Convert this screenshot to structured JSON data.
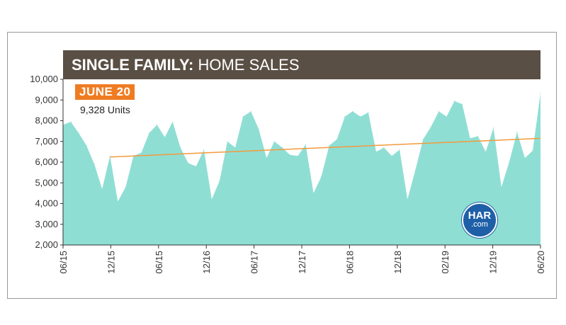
{
  "colors": {
    "area": "#8fded4",
    "trend": "#f39a3c",
    "title_bar": "#5a4f44",
    "badge": "#f07c22",
    "logo": "#1e5fa8"
  },
  "title": {
    "strong": "SINGLE FAMILY:",
    "rest": "HOME SALES"
  },
  "callout": {
    "badge": "JUNE 20",
    "value": "9,328 Units"
  },
  "logo": {
    "line1": "HAR",
    "line2": ".com",
    "icon": "har-logo"
  },
  "chart_data": {
    "type": "area",
    "ylim": [
      2000,
      10000
    ],
    "yticks": [
      2000,
      3000,
      4000,
      5000,
      6000,
      7000,
      8000,
      9000,
      10000
    ],
    "ytick_labels": [
      "2,000",
      "3,000",
      "4,000",
      "5,000",
      "6,000",
      "7,000",
      "8,000",
      "9,000",
      "10,000"
    ],
    "xtick_labels": [
      "06/15",
      "12/15",
      "06/15",
      "12/16",
      "06/17",
      "12/17",
      "06/18",
      "12/18",
      "02/19",
      "12/19",
      "06/20"
    ],
    "series": [
      {
        "values": [
          7800,
          7950,
          7400,
          6800,
          5900,
          4700,
          6300,
          4100,
          4800,
          6300,
          6450,
          7400,
          7800,
          7200,
          7950,
          6700,
          5950,
          5800,
          6600,
          4200,
          5100,
          7000,
          6700,
          8200,
          8450,
          7600,
          6200,
          7000,
          6700,
          6350,
          6300,
          6850,
          4500,
          5300,
          6800,
          7100,
          8200,
          8450,
          8200,
          8400,
          6500,
          6700,
          6300,
          6600,
          4200,
          5600,
          7100,
          7700,
          8450,
          8200,
          8950,
          8800,
          7150,
          7250,
          6500,
          7650,
          4800,
          6000,
          7450,
          6200,
          6550,
          9328
        ]
      }
    ],
    "trend": {
      "start": 6250,
      "end": 7150
    }
  }
}
